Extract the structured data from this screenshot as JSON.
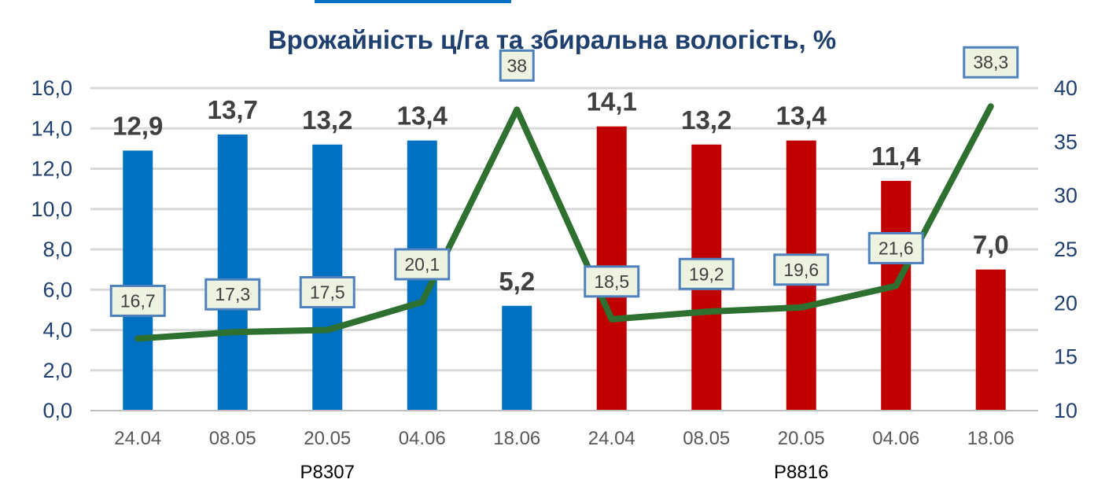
{
  "chart_data": {
    "type": "bar",
    "title": "Врожайність ц/га та збиральна вологість, %",
    "categories": [
      "24.04",
      "08.05",
      "20.05",
      "04.06",
      "18.06",
      "24.04",
      "08.05",
      "20.05",
      "04.06",
      "18.06"
    ],
    "groups": [
      {
        "label": "P8307",
        "start": 0,
        "end": 4
      },
      {
        "label": "P8816",
        "start": 5,
        "end": 9
      }
    ],
    "bar_values": [
      12.9,
      13.7,
      13.2,
      13.4,
      5.2,
      14.1,
      13.2,
      13.4,
      11.4,
      7.0
    ],
    "bar_value_labels": [
      "12,9",
      "13,7",
      "13,2",
      "13,4",
      "5,2",
      "14,1",
      "13,2",
      "13,4",
      "11,4",
      "7,0"
    ],
    "bar_colors": [
      "#0070c0",
      "#0070c0",
      "#0070c0",
      "#0070c0",
      "#0070c0",
      "#c00000",
      "#c00000",
      "#c00000",
      "#c00000",
      "#c00000"
    ],
    "line_values": [
      16.7,
      17.3,
      17.5,
      20.1,
      38,
      18.5,
      19.2,
      19.6,
      21.6,
      38.3
    ],
    "line_value_labels": [
      "16,7",
      "17,3",
      "17,5",
      "20,1",
      "38",
      "18,5",
      "19,2",
      "19,6",
      "21,6",
      "38,3"
    ],
    "line_color": "#2e7030",
    "y_left": {
      "min": 0,
      "max": 16,
      "step": 2,
      "tick_labels": [
        "0,0",
        "2,0",
        "4,0",
        "6,0",
        "8,0",
        "10,0",
        "12,0",
        "14,0",
        "16,0"
      ]
    },
    "y_right": {
      "min": 10,
      "max": 40,
      "step": 5,
      "tick_labels": [
        "10",
        "15",
        "20",
        "25",
        "30",
        "35",
        "40"
      ]
    },
    "grid": true,
    "legend": "none"
  }
}
